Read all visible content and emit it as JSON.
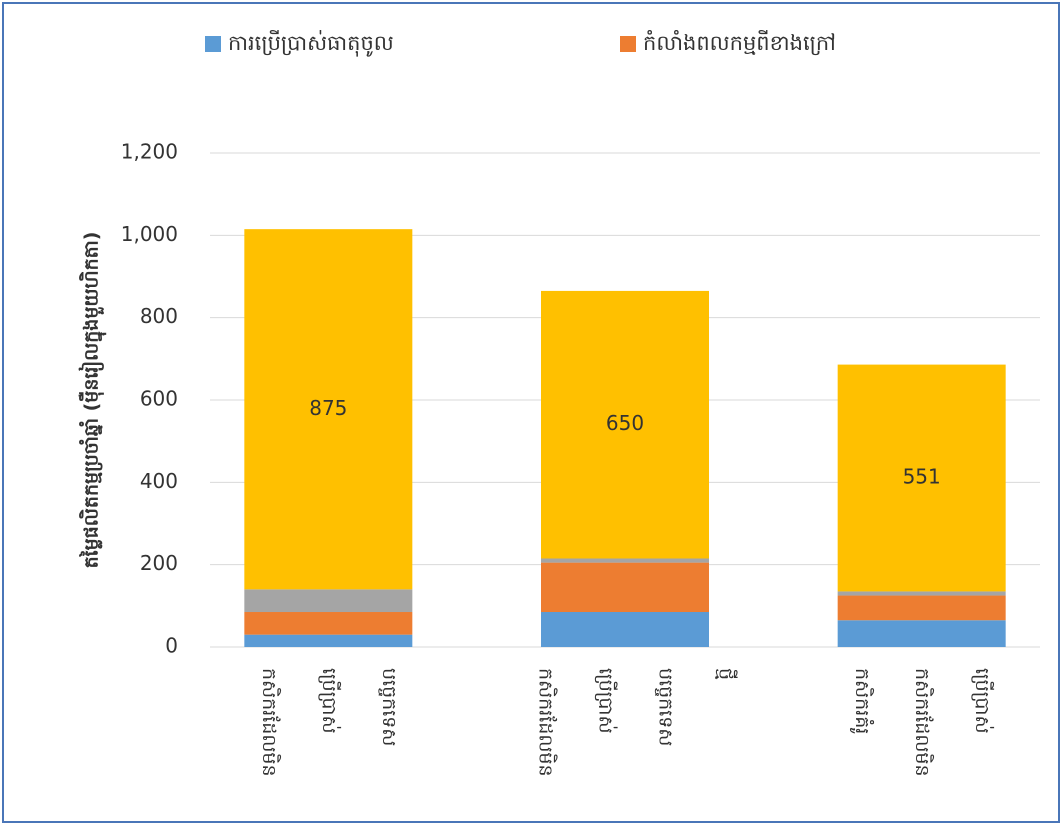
{
  "chart_data": {
    "type": "stacked_bar",
    "ylabel": "តម្លៃផលិតកម្មប្រចាំឆ្នាំ (ម៉ឺនរៀលក្នុងមួយហិកតា)",
    "categories": [
      [
        "កសិករដែលមិន",
        "ប្រើប្រាស់",
        "បច្ចេកទេស"
      ],
      [
        "កសិករដែលមិន",
        "ប្រើប្រាស់",
        "បច្ចេកទេស",
        "ថ្មី"
      ],
      [
        "កសិករគំរូ",
        "កសិករដែលមិន",
        "ប្រើប្រាស់"
      ]
    ],
    "series": [
      {
        "name": "ការប្រើប្រាស់ធាតុចូល",
        "color": "#5b9bd5",
        "values": [
          30,
          85,
          65
        ]
      },
      {
        "name": "កំលាំងពលកម្មពីខាងក្រៅ",
        "color": "#ed7d31",
        "values": [
          55,
          120,
          60
        ]
      },
      {
        "color": "#a5a5a5",
        "values": [
          55,
          10,
          10
        ]
      },
      {
        "color": "#ffc000",
        "values": [
          875,
          650,
          551
        ],
        "labels": true
      }
    ],
    "ylim": [
      0,
      1200
    ],
    "yticks": [
      0,
      {
        "value": 200,
        "label": "200"
      },
      400,
      600,
      800,
      {
        "value": 1000,
        "label": "1,000"
      },
      {
        "value": 1200,
        "label": "1,200"
      }
    ],
    "grid": true
  }
}
